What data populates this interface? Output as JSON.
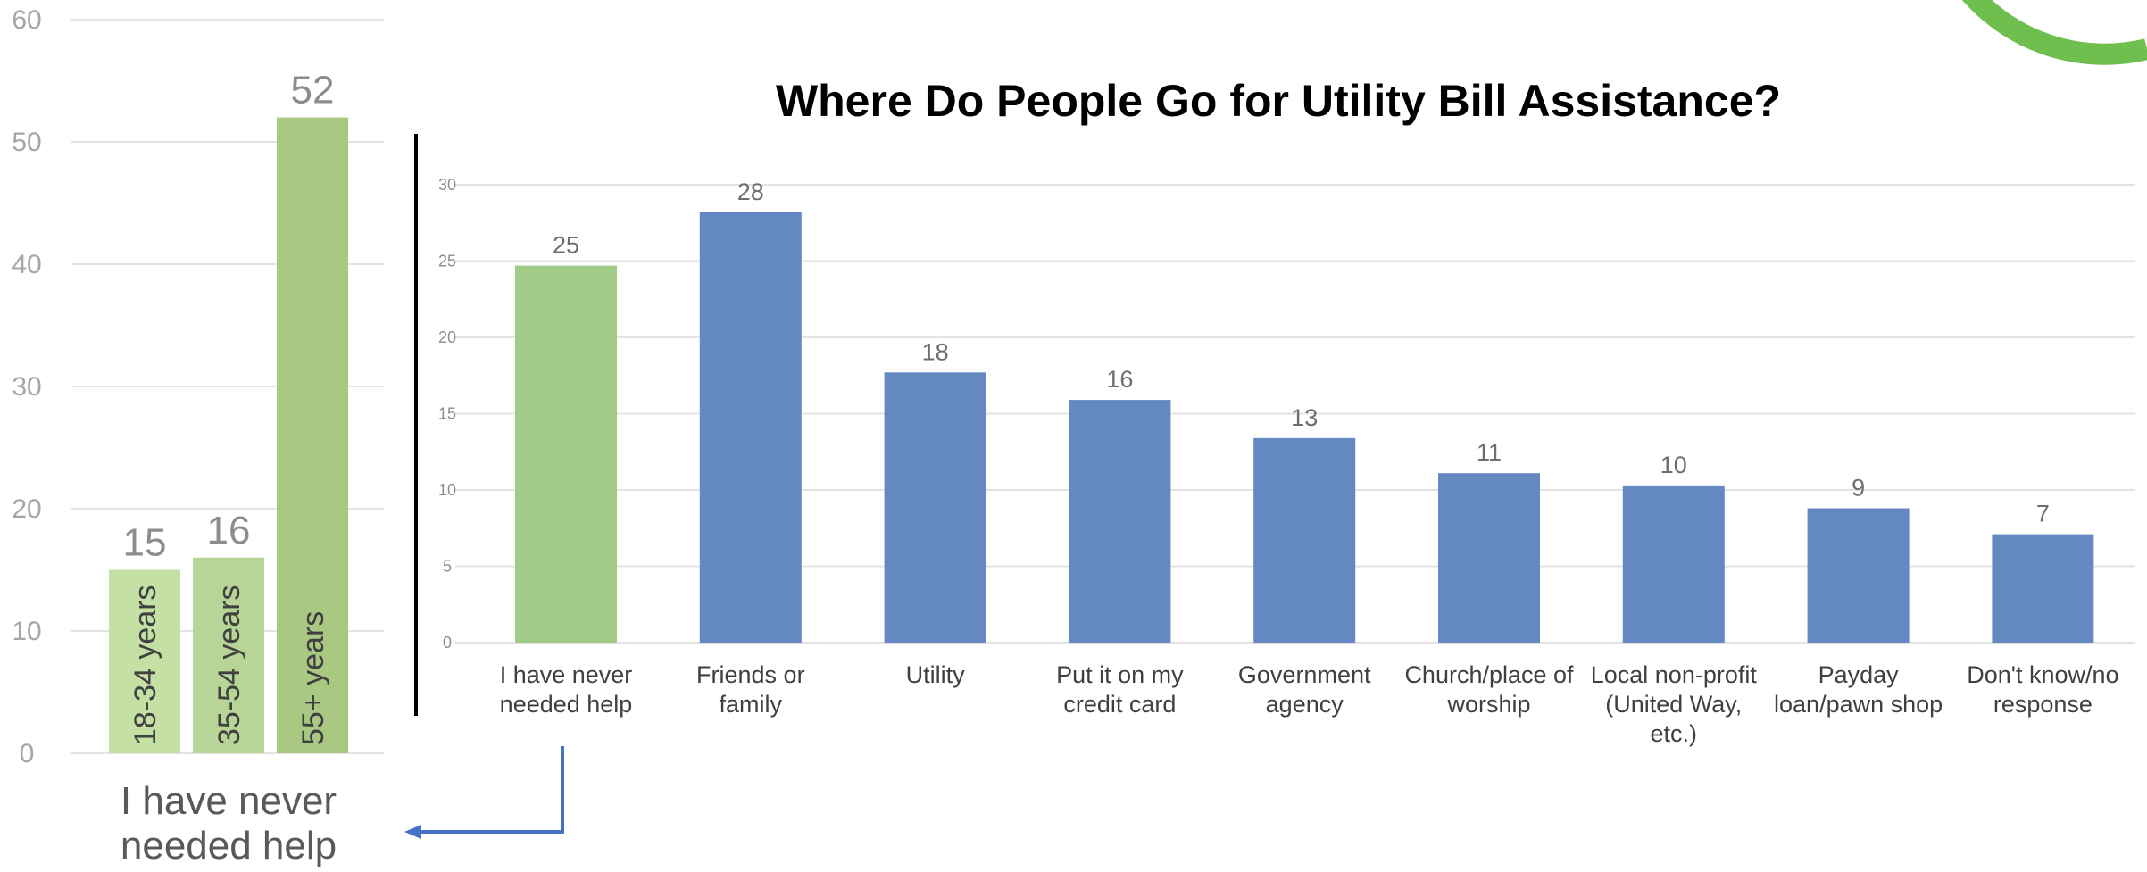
{
  "chart_data": [
    {
      "type": "bar",
      "title": "",
      "xlabel": "",
      "ylabel": "",
      "ylim": [
        0,
        60
      ],
      "yticks": [
        "0",
        "10",
        "20",
        "30",
        "40",
        "50",
        "60"
      ],
      "grid": true,
      "category": "I have never needed help",
      "categories": [
        "18-34 years",
        "35-54 years",
        "55+ years"
      ],
      "values": [
        15,
        16,
        52
      ],
      "data_labels": [
        "15",
        "16",
        "52"
      ],
      "colors": [
        "#c5e0a5",
        "#b7d596",
        "#a9c882"
      ]
    },
    {
      "type": "bar",
      "title": "Where Do People Go for Utility Bill Assistance?",
      "xlabel": "",
      "ylabel": "",
      "ylim": [
        0,
        30
      ],
      "yticks": [
        "0",
        "5",
        "10",
        "15",
        "20",
        "25",
        "30"
      ],
      "grid": true,
      "categories": [
        [
          "I have never",
          "needed help"
        ],
        [
          "Friends or",
          "family"
        ],
        [
          "Utility"
        ],
        [
          "Put it on my",
          "credit card"
        ],
        [
          "Government",
          "agency"
        ],
        [
          "Church/place of",
          "worship"
        ],
        [
          "Local non-profit",
          "(United Way,",
          "etc.)"
        ],
        [
          "Payday",
          "loan/pawn shop"
        ],
        [
          "Don't know/no",
          "response"
        ]
      ],
      "values": [
        25,
        28,
        18,
        16,
        13,
        11,
        10,
        9,
        7
      ],
      "plotted_values": [
        24.7,
        28.2,
        17.7,
        15.9,
        13.4,
        11.1,
        10.3,
        8.8,
        7.1
      ],
      "data_labels": [
        "25",
        "28",
        "18",
        "16",
        "13",
        "11",
        "10",
        "9",
        "7"
      ],
      "colors": [
        "#9fcb87",
        "#6488c2",
        "#6488c2",
        "#6488c2",
        "#6488c2",
        "#6488c2",
        "#6488c2",
        "#6488c2",
        "#6488c2"
      ]
    }
  ],
  "decor": {
    "accent": "#6fbf4f",
    "arrow_color": "#4472c4",
    "divider_color": "#000000"
  }
}
